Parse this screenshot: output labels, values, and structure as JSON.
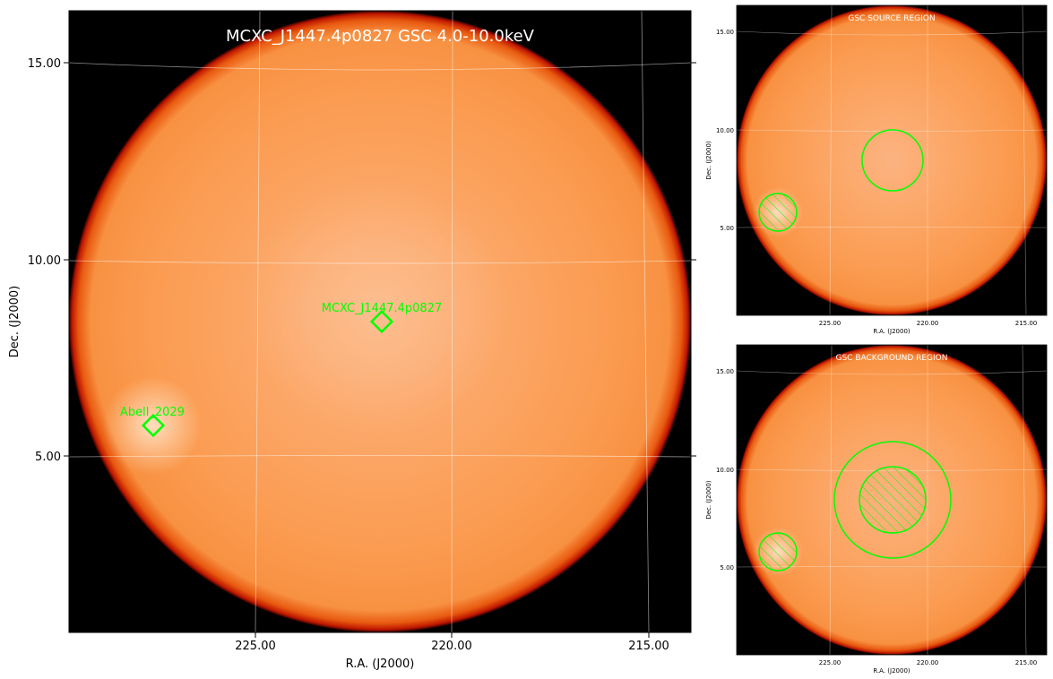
{
  "main_panel": {
    "title": "MCXC_J1447.4p0827 GSC 4.0-10.0keV",
    "xlabel": "R.A. (J2000)",
    "ylabel": "Dec. (J2000)",
    "xticks": [
      "225.00",
      "220.00",
      "215.00"
    ],
    "yticks": [
      "15.00",
      "10.00",
      "5.00"
    ],
    "sources": [
      {
        "label": "MCXC_J1447.4p0827",
        "marker": "diamond"
      },
      {
        "label": "Abell_2029",
        "marker": "diamond"
      }
    ]
  },
  "source_panel": {
    "title": "GSC SOURCE REGION",
    "xlabel": "R.A. (J2000)",
    "ylabel": "Dec. (J2000)",
    "xticks": [
      "225.00",
      "220.00",
      "215.00"
    ],
    "yticks": [
      "15.00",
      "10.00",
      "5.00"
    ]
  },
  "background_panel": {
    "title": "GSC BACKGROUND REGION",
    "xlabel": "R.A. (J2000)",
    "ylabel": "Dec. (J2000)",
    "xticks": [
      "225.00",
      "220.00",
      "215.00"
    ],
    "yticks": [
      "15.00",
      "10.00",
      "5.00"
    ]
  },
  "colors": {
    "region": "#00ff00",
    "sky_fill": "#fb9b50",
    "sky_edge": "#c01800",
    "background": "#000000",
    "label_text": "#ffffff"
  }
}
